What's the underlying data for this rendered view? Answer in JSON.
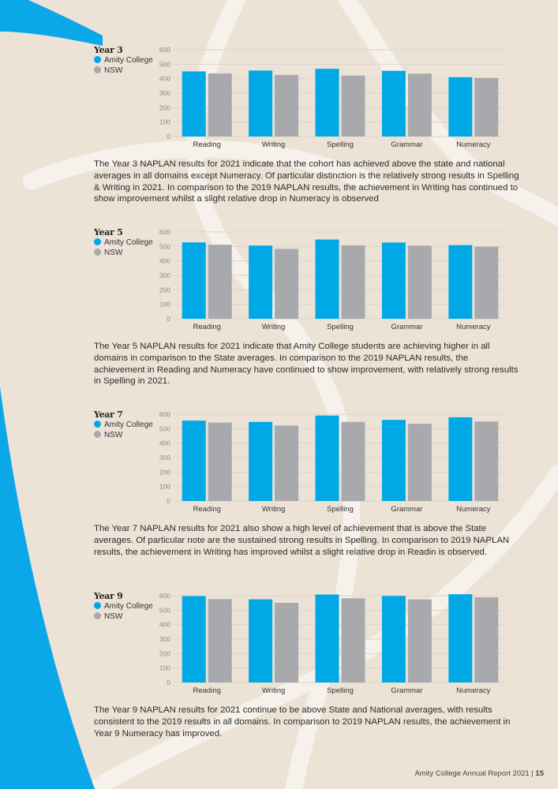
{
  "colors": {
    "school": "#00a9e6",
    "state": "#a7a9ad",
    "accent_blue": "#0aa7e9",
    "background": "#ece3d6"
  },
  "legend": {
    "school": "Amity College",
    "state": "NSW"
  },
  "chart_data": [
    {
      "type": "bar",
      "title": "Year 3",
      "categories": [
        "Reading",
        "Writing",
        "Spelling",
        "Grammar",
        "Numeracy"
      ],
      "series": [
        {
          "name": "Amity College",
          "values": [
            450,
            456,
            468,
            454,
            410
          ]
        },
        {
          "name": "NSW",
          "values": [
            436,
            425,
            421,
            434,
            405
          ]
        }
      ],
      "ylim": [
        0,
        600
      ],
      "yticks": [
        0,
        100,
        200,
        300,
        400,
        500,
        600
      ],
      "grid": true,
      "legend": "left"
    },
    {
      "type": "bar",
      "title": "Year 5",
      "categories": [
        "Reading",
        "Writing",
        "Spelling",
        "Grammar",
        "Numeracy"
      ],
      "series": [
        {
          "name": "Amity College",
          "values": [
            528,
            506,
            548,
            527,
            509
          ]
        },
        {
          "name": "NSW",
          "values": [
            512,
            483,
            507,
            505,
            498
          ]
        }
      ],
      "ylim": [
        0,
        600
      ],
      "yticks": [
        0,
        100,
        200,
        300,
        400,
        500,
        600
      ],
      "grid": true,
      "legend": "left"
    },
    {
      "type": "bar",
      "title": "Year 7",
      "categories": [
        "Reading",
        "Writing",
        "Spelling",
        "Grammar",
        "Numeracy"
      ],
      "series": [
        {
          "name": "Amity College",
          "values": [
            556,
            547,
            591,
            561,
            579
          ]
        },
        {
          "name": "NSW",
          "values": [
            542,
            522,
            547,
            534,
            550
          ]
        }
      ],
      "ylim": [
        0,
        600
      ],
      "yticks": [
        0,
        100,
        200,
        300,
        400,
        500,
        600
      ],
      "grid": true,
      "legend": "left"
    },
    {
      "type": "bar",
      "title": "Year 9",
      "categories": [
        "Reading",
        "Writing",
        "Spelling",
        "Grammar",
        "Numeracy"
      ],
      "series": [
        {
          "name": "Amity College",
          "values": [
            597,
            575,
            608,
            598,
            610
          ]
        },
        {
          "name": "NSW",
          "values": [
            577,
            551,
            582,
            574,
            589
          ]
        }
      ],
      "ylim": [
        0,
        600
      ],
      "yticks": [
        0,
        100,
        200,
        300,
        400,
        500,
        600
      ],
      "grid": true,
      "legend": "left"
    }
  ],
  "paragraphs": [
    "The Year 3 NAPLAN results for 2021 indicate that the cohort has achieved above the state and national averages in all domains except Numeracy. Of particular distinction is the relatively strong results in Spelling & Writing in 2021. In comparison to the 2019 NAPLAN results, the achievement in Writing has continued to show improvement whilst a slight relative drop in Numeracy is observed",
    "The Year 5 NAPLAN results for 2021 indicate that Amity College students are achieving higher in all domains in comparison to the State averages. In comparison to the 2019 NAPLAN results, the achievement in Reading and Numeracy have continued to show improvement, with relatively strong results in Spelling in 2021.",
    "The Year 7 NAPLAN results for 2021 also show a high level of achievement that is above the State averages. Of particular note are the sustained strong results in Spelling. In comparison to 2019 NAPLAN results, the achievement in Writing has improved whilst a slight relative drop in Readin is observed.",
    "The Year 9 NAPLAN results for 2021 continue to be above State and National averages, with results consistent to the 2019 results in all domains. In comparison to 2019 NAPLAN results, the achievement in Year 9 Numeracy has improved."
  ],
  "footer": {
    "report": "Amity College Annual Report 2021 | ",
    "page": "15"
  }
}
